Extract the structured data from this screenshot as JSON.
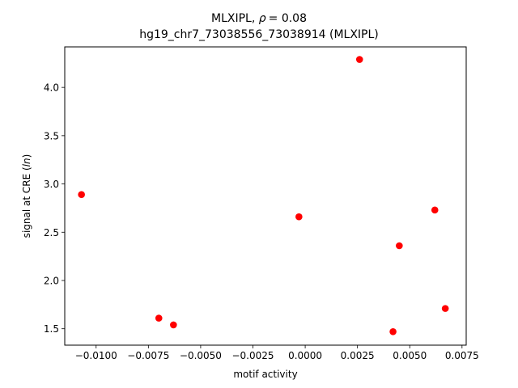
{
  "chart_data": {
    "type": "scatter",
    "title_prefix": "MLXIPL, ",
    "title_rho_symbol": "ρ",
    "title_rho_value": "= 0.08",
    "subtitle": "hg19_chr7_73038556_73038914 (MLXIPL)",
    "xlabel": "motif activity",
    "ylabel_prefix": "signal at CRE (",
    "ylabel_italic": "ln",
    "ylabel_suffix": ")",
    "xlim": [
      -0.0115,
      0.0077
    ],
    "ylim": [
      1.33,
      4.42
    ],
    "xticks": [
      -0.01,
      -0.0075,
      -0.005,
      -0.0025,
      0.0,
      0.0025,
      0.005,
      0.0075
    ],
    "xtick_labels": [
      "−0.0100",
      "−0.0075",
      "−0.0050",
      "−0.0025",
      "0.0000",
      "0.0025",
      "0.0050",
      "0.0075"
    ],
    "yticks": [
      1.5,
      2.0,
      2.5,
      3.0,
      3.5,
      4.0
    ],
    "ytick_labels": [
      "1.5",
      "2.0",
      "2.5",
      "3.0",
      "3.5",
      "4.0"
    ],
    "grid": false,
    "marker_color": "#ff0000",
    "points": [
      {
        "x": -0.0107,
        "y": 2.89
      },
      {
        "x": -0.007,
        "y": 1.61
      },
      {
        "x": -0.0063,
        "y": 1.54
      },
      {
        "x": -0.0003,
        "y": 2.66
      },
      {
        "x": 0.0026,
        "y": 4.29
      },
      {
        "x": 0.0042,
        "y": 1.47
      },
      {
        "x": 0.0045,
        "y": 2.36
      },
      {
        "x": 0.0062,
        "y": 2.73
      },
      {
        "x": 0.0067,
        "y": 1.71
      }
    ]
  }
}
